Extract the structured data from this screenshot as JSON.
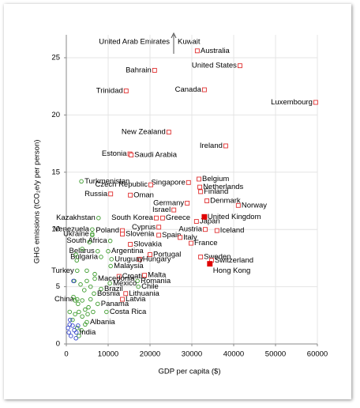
{
  "chart_data": {
    "type": "scatter",
    "xlabel": "GDP per capita ($)",
    "ylabel": "GHG emissions (tCO₂e/y per person)",
    "annotations": [
      "United Arab Emirates",
      "Kuwait"
    ],
    "xlim": [
      0,
      60000
    ],
    "ylim": [
      0,
      27
    ],
    "xticks": [
      0,
      10000,
      20000,
      30000,
      40000,
      50000,
      60000
    ],
    "yticks": [
      0,
      5,
      10,
      15,
      20,
      25
    ],
    "grid": true,
    "series": [
      {
        "color": "#e03030",
        "marker": "square-open",
        "labels": [
          "Australia",
          "Bahrain",
          "United States",
          "Trinidad",
          "Canada",
          "Luxembourg",
          "New Zealand",
          "Ireland",
          "Estonia",
          "Saudi Arabia",
          "Singapore",
          "Belgium",
          "Netherlands",
          "Czech Republic",
          "Finland",
          "Russia",
          "Oman",
          "Denmark",
          "Norway",
          "Germany",
          "Israel",
          "South Korea",
          "Greece",
          "Japan",
          "Poland",
          "Cyprus",
          "Austria",
          "Iceland",
          "Slovenia",
          "Spain",
          "Italy",
          "France",
          "Slovakia",
          "Portugal",
          "Sweden",
          "Switzerland",
          "Hungary",
          "Croatia",
          "Malta",
          "Lithuania",
          "Latvia"
        ],
        "x": [
          31300,
          21100,
          41500,
          14300,
          33000,
          59600,
          24500,
          38100,
          15200,
          15500,
          29200,
          31700,
          31900,
          20200,
          32100,
          10600,
          15300,
          33600,
          41100,
          28900,
          25700,
          21500,
          23000,
          31100,
          13400,
          22100,
          33200,
          36000,
          13400,
          22100,
          27200,
          29800,
          15300,
          20000,
          32100,
          34700,
          17500,
          12600,
          18700,
          14200,
          13400
        ],
        "y": [
          25.6,
          23.9,
          24.3,
          22.1,
          22.2,
          21.1,
          18.5,
          17.3,
          16.6,
          16.5,
          14.1,
          14.4,
          13.7,
          13.9,
          13.3,
          13.1,
          13.0,
          12.5,
          12.1,
          12.3,
          11.7,
          11.0,
          11.0,
          10.7,
          9.9,
          10.2,
          10.0,
          9.9,
          9.6,
          9.5,
          9.3,
          8.8,
          8.7,
          7.8,
          7.6,
          7.3,
          7.4,
          5.9,
          6.0,
          4.4,
          3.9
        ]
      },
      {
        "color": "#e00000",
        "marker": "square-filled",
        "labels": [
          "United Kingdom",
          "Hong Kong"
        ],
        "x": [
          33000,
          34300
        ],
        "y": [
          11.1,
          7.0
        ]
      },
      {
        "color": "#3a9a2a",
        "marker": "circle-open",
        "labels": [
          "Turkmenistan",
          "Kazakhstan",
          "Venezuela",
          "Ukraine",
          "South Africa",
          "Argentina",
          "Belarus",
          "Bulgaria",
          "Uruguay",
          "Malaysia",
          "Turkey",
          "Macedonia",
          "Romania",
          "Mexico",
          "Chile",
          "Brazil",
          "Bosnia",
          "China",
          "Panama",
          "Costa Rica",
          "Albania",
          null,
          null,
          null,
          null,
          null,
          null,
          null,
          null,
          null,
          null,
          null,
          null,
          null,
          null,
          null,
          null,
          null,
          null,
          null,
          null,
          null,
          null,
          null,
          null,
          null,
          null,
          null,
          null,
          null,
          null
        ],
        "x": [
          3600,
          7700,
          6200,
          6200,
          10500,
          10000,
          7500,
          8300,
          10800,
          10600,
          2600,
          6800,
          17000,
          10400,
          17200,
          8300,
          6600,
          2600,
          7500,
          9600,
          4900,
          1700,
          2100,
          2800,
          3000,
          2100,
          3800,
          4500,
          5300,
          3800,
          5800,
          4300,
          5800,
          3400,
          1900,
          4900,
          2500,
          2300,
          3800,
          4900,
          6800,
          1500,
          2600,
          3600,
          5100,
          6400,
          4500,
          3000,
          800,
          5500,
          6200
        ],
        "y": [
          14.2,
          11.0,
          10.0,
          9.6,
          9.0,
          8.1,
          8.1,
          7.6,
          7.4,
          6.8,
          6.4,
          5.7,
          5.5,
          5.3,
          5.0,
          4.8,
          4.4,
          3.9,
          3.5,
          2.8,
          1.9,
          4.1,
          3.8,
          3.5,
          2.8,
          2.6,
          2.4,
          3.0,
          3.2,
          3.8,
          3.9,
          4.7,
          5.0,
          5.2,
          5.5,
          5.5,
          7.3,
          7.8,
          8.3,
          6.4,
          6.1,
          2.1,
          1.4,
          1.2,
          2.6,
          2.8,
          1.7,
          0.7,
          2.8,
          8.9,
          9.5
        ]
      },
      {
        "color": "#3344cc",
        "marker": "circle-open",
        "labels": [
          "India",
          null,
          null,
          null,
          null,
          null,
          null,
          null,
          null,
          null,
          null
        ],
        "x": [
          2400,
          1700,
          800,
          1500,
          600,
          1100,
          2300,
          1900,
          400,
          2800,
          900
        ],
        "y": [
          1.0,
          5.5,
          1.7,
          1.6,
          1.0,
          0.7,
          0.5,
          1.2,
          1.4,
          1.6,
          2.1
        ]
      }
    ]
  }
}
